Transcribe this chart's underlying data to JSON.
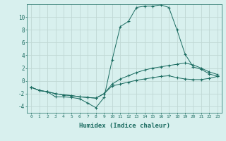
{
  "xlabel": "Humidex (Indice chaleur)",
  "background_color": "#d8f0ee",
  "grid_color": "#c0d8d4",
  "line_color": "#1a6b60",
  "series1": {
    "x": [
      0,
      1,
      2,
      3,
      4,
      5,
      6,
      7,
      8,
      9,
      10,
      11,
      12,
      13,
      14,
      15,
      16,
      17,
      18,
      19,
      20,
      21,
      22,
      23
    ],
    "y": [
      -1.0,
      -1.5,
      -1.7,
      -2.5,
      -2.5,
      -2.6,
      -2.8,
      -3.5,
      -4.2,
      -2.6,
      3.3,
      8.5,
      9.3,
      11.5,
      11.7,
      11.7,
      11.9,
      11.5,
      8.0,
      4.2,
      2.2,
      1.8,
      1.1,
      0.7
    ]
  },
  "series2": {
    "x": [
      0,
      1,
      2,
      3,
      4,
      5,
      6,
      7,
      8,
      9,
      10,
      11,
      12,
      13,
      14,
      15,
      16,
      17,
      18,
      19,
      20,
      21,
      22,
      23
    ],
    "y": [
      -1.0,
      -1.5,
      -1.7,
      -2.0,
      -2.2,
      -2.3,
      -2.5,
      -2.6,
      -2.7,
      -2.0,
      -0.5,
      0.3,
      0.8,
      1.3,
      1.7,
      2.0,
      2.2,
      2.4,
      2.6,
      2.8,
      2.5,
      2.0,
      1.4,
      1.0
    ]
  },
  "series3": {
    "x": [
      0,
      1,
      2,
      3,
      4,
      5,
      6,
      7,
      8,
      9,
      10,
      11,
      12,
      13,
      14,
      15,
      16,
      17,
      18,
      19,
      20,
      21,
      22,
      23
    ],
    "y": [
      -1.0,
      -1.5,
      -1.7,
      -2.0,
      -2.2,
      -2.3,
      -2.5,
      -2.6,
      -2.7,
      -2.0,
      -0.8,
      -0.5,
      -0.2,
      0.1,
      0.3,
      0.5,
      0.7,
      0.8,
      0.5,
      0.3,
      0.2,
      0.2,
      0.4,
      0.7
    ]
  },
  "ylim": [
    -5,
    12
  ],
  "xlim": [
    -0.5,
    23.5
  ],
  "yticks": [
    -4,
    -2,
    0,
    2,
    4,
    6,
    8,
    10
  ],
  "xticks": [
    0,
    1,
    2,
    3,
    4,
    5,
    6,
    7,
    8,
    9,
    10,
    11,
    12,
    13,
    14,
    15,
    16,
    17,
    18,
    19,
    20,
    21,
    22,
    23
  ]
}
